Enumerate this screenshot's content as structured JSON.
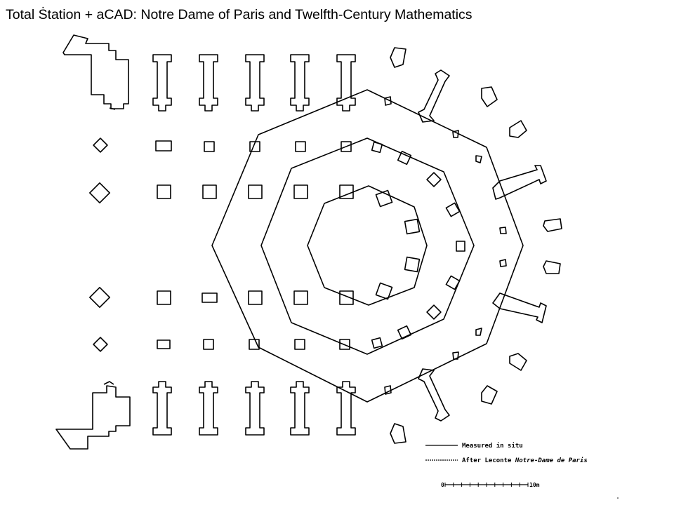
{
  "slide": {
    "title": "Total Ṡtation + aCAD: Notre Dame of Paris and Twelfth-Century Mathematics"
  },
  "legend": {
    "measured_label": "Measured in situ",
    "after_prefix": "After Leconte ",
    "after_book": "Notre-Dame de Paris"
  },
  "scale_bar": {
    "start_label": "0",
    "end_label": "10m",
    "ticks": 10
  },
  "colors": {
    "ink": "#000000",
    "background": "#ffffff"
  }
}
